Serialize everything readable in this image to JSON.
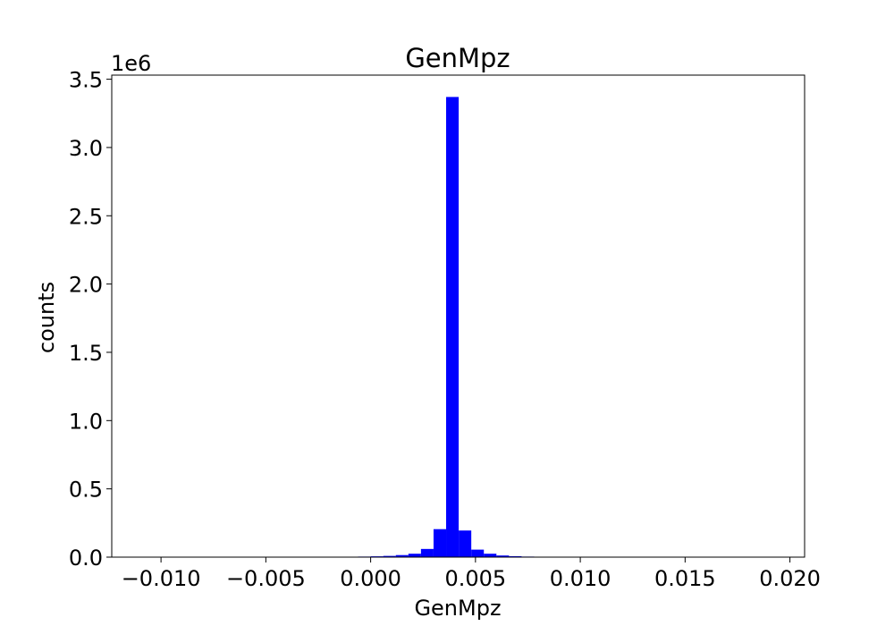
{
  "chart_data": {
    "type": "bar",
    "title": "GenMpz",
    "xlabel": "GenMpz",
    "ylabel": "counts",
    "offset_label": "1e6",
    "xlim": [
      -0.01235,
      0.0207
    ],
    "ylim": [
      0,
      3.53
    ],
    "xticks": [
      -0.01,
      -0.005,
      0.0,
      0.005,
      0.01,
      0.015,
      0.02
    ],
    "xtick_labels": [
      "−0.010",
      "−0.005",
      "0.000",
      "0.005",
      "0.010",
      "0.015",
      "0.020"
    ],
    "yticks": [
      0.0,
      0.5,
      1.0,
      1.5,
      2.0,
      2.5,
      3.0,
      3.5
    ],
    "ytick_labels": [
      "0.0",
      "0.5",
      "1.0",
      "1.5",
      "2.0",
      "2.5",
      "3.0",
      "3.5"
    ],
    "bin_width": 0.0006,
    "bin_starts": [
      -0.0006,
      0.0,
      0.0006,
      0.0012,
      0.0018,
      0.0024,
      0.003,
      0.0036,
      0.0042,
      0.0048,
      0.0054,
      0.006,
      0.0066,
      0.0072
    ],
    "values": [
      0.004,
      0.006,
      0.009,
      0.015,
      0.025,
      0.06,
      0.205,
      3.37,
      0.195,
      0.055,
      0.025,
      0.012,
      0.007,
      0.004
    ],
    "bar_color": "#0000ff",
    "grid": false
  }
}
